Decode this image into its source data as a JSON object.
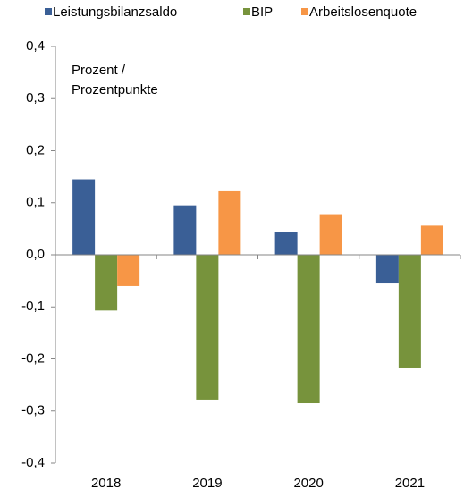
{
  "chart_data": {
    "type": "bar",
    "unit_label": [
      "Prozent /",
      "Prozentpunkte"
    ],
    "categories": [
      "2018",
      "2019",
      "2020",
      "2021"
    ],
    "series": [
      {
        "name": "Leistungsbilanzsaldo",
        "color": "#3a5f96",
        "values": [
          0.145,
          0.095,
          0.043,
          -0.055
        ]
      },
      {
        "name": "BIP",
        "color": "#77933c",
        "values": [
          -0.107,
          -0.278,
          -0.285,
          -0.218
        ]
      },
      {
        "name": "Arbeitslosenquote",
        "color": "#f79646",
        "values": [
          -0.06,
          0.122,
          0.078,
          0.056
        ]
      }
    ],
    "ylim": [
      -0.4,
      0.4
    ],
    "yticks": [
      {
        "value": -0.4,
        "label": "-0,4"
      },
      {
        "value": -0.3,
        "label": "-0,3"
      },
      {
        "value": -0.2,
        "label": "-0,2"
      },
      {
        "value": -0.1,
        "label": "-0,1"
      },
      {
        "value": 0,
        "label": "0,0"
      },
      {
        "value": 0.1,
        "label": "0,1"
      },
      {
        "value": 0.2,
        "label": "0,2"
      },
      {
        "value": 0.3,
        "label": "0,3"
      },
      {
        "value": 0.4,
        "label": "0,4"
      }
    ],
    "grid": false,
    "legend": "top"
  }
}
